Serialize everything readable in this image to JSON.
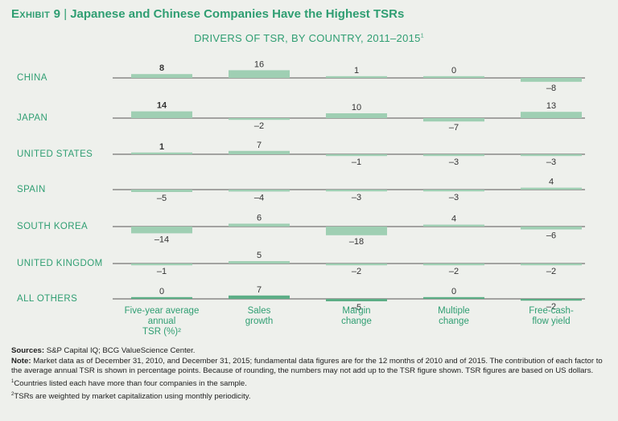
{
  "exhibit": {
    "label": "Exhibit 9",
    "separator": "|",
    "title": "Japanese and Chinese Companies Have the Highest TSRs"
  },
  "subtitle": {
    "text": "DRIVERS OF TSR, BY COUNTRY, 2011–2015",
    "marker": "1"
  },
  "colors": {
    "accent": "#2f9e72",
    "bar": "#9fcfb3",
    "bar_highlight": "#5cae86",
    "axis": "#555555",
    "background": "#eef0ec"
  },
  "chart_data": {
    "type": "bar",
    "title": "DRIVERS OF TSR, BY COUNTRY, 2011–2015",
    "metrics": [
      "Five-year average annual TSR (%)²",
      "Sales growth",
      "Margin change",
      "Multiple change",
      "Free-cash-flow yield"
    ],
    "metric_labels": [
      [
        "Five-year average",
        "annual",
        "TSR (%)²"
      ],
      [
        "Sales",
        "growth"
      ],
      [
        "Margin",
        "change"
      ],
      [
        "Multiple",
        "change"
      ],
      [
        "Free-cash-",
        "flow yield"
      ]
    ],
    "countries": [
      "CHINA",
      "JAPAN",
      "UNITED STATES",
      "SPAIN",
      "SOUTH KOREA",
      "UNITED KINGDOM",
      "ALL OTHERS"
    ],
    "values": [
      [
        8,
        16,
        1,
        0,
        -8
      ],
      [
        14,
        -2,
        10,
        -7,
        13
      ],
      [
        1,
        7,
        -1,
        -3,
        -3
      ],
      [
        -5,
        -4,
        -3,
        -3,
        4
      ],
      [
        -14,
        6,
        -18,
        4,
        -6
      ],
      [
        -1,
        5,
        -2,
        -2,
        -2
      ],
      [
        0,
        7,
        -5,
        0,
        -2
      ]
    ],
    "value_labels": [
      [
        "8",
        "16",
        "1",
        "0",
        "–8"
      ],
      [
        "14",
        "–2",
        "10",
        "–7",
        "13"
      ],
      [
        "1",
        "7",
        "–1",
        "–3",
        "–3"
      ],
      [
        "–5",
        "–4",
        "–3",
        "–3",
        "4"
      ],
      [
        "–14",
        "6",
        "–18",
        "4",
        "–6"
      ],
      [
        "–1",
        "5",
        "–2",
        "–2",
        "–2"
      ],
      [
        "0",
        "7",
        "–5",
        "0",
        "–2"
      ]
    ],
    "bold_column": 0,
    "highlight_row": 6,
    "unit": "percentage points"
  },
  "footnotes": {
    "sources_label": "Sources:",
    "sources_text": "S&P Capital IQ; BCG ValueScience Center.",
    "note_label": "Note:",
    "note_text": "Market data as of December 31, 2010, and December 31, 2015; fundamental data figures are for the 12 months of 2010 and of 2015. The contribution of each factor to the average annual TSR is shown in percentage points. Because of rounding, the numbers may not add up to the TSR figure shown. TSR figures are based on US dollars.",
    "fn1_marker": "1",
    "fn1_text": "Countries listed each have more than four companies in the sample.",
    "fn2_marker": "2",
    "fn2_text": "TSRs are weighted by market capitalization using monthly periodicity."
  }
}
